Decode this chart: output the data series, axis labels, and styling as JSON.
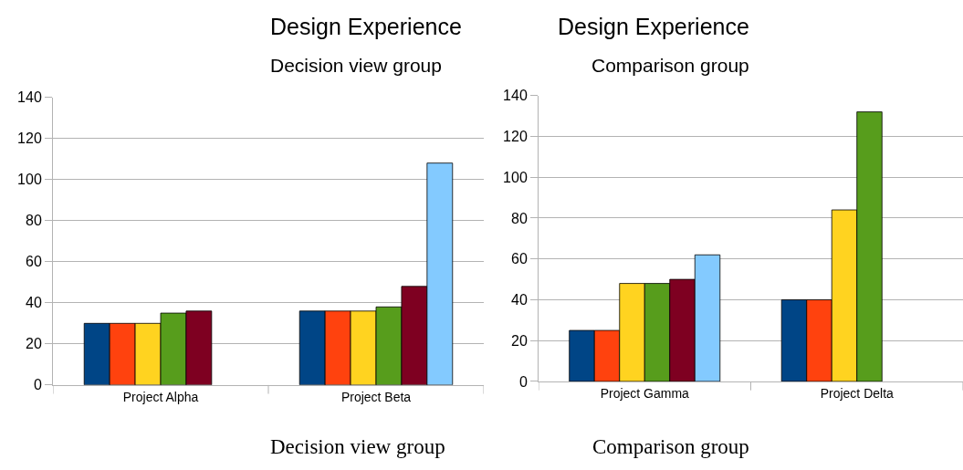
{
  "chart_data": [
    {
      "type": "bar",
      "title": "Design Experience",
      "subtitle": "Decision view group",
      "categories": [
        "Project Alpha",
        "Project Beta"
      ],
      "series": [
        {
          "color": "#004586",
          "values": [
            30,
            36
          ]
        },
        {
          "color": "#ff420e",
          "values": [
            30,
            36
          ]
        },
        {
          "color": "#ffd320",
          "values": [
            30,
            36
          ]
        },
        {
          "color": "#579d1c",
          "values": [
            35,
            38
          ]
        },
        {
          "color": "#7e0021",
          "values": [
            36,
            48
          ]
        },
        {
          "color": "#83caff",
          "values": [
            null,
            108
          ]
        }
      ],
      "ylim": [
        0,
        140
      ],
      "yticks": [
        0,
        20,
        40,
        60,
        80,
        100,
        120,
        140
      ],
      "grid": "y",
      "annotations": [
        "Decision view group"
      ]
    },
    {
      "type": "bar",
      "title": "Design Experience",
      "subtitle": "Comparison group",
      "categories": [
        "Project Gamma",
        "Project Delta"
      ],
      "series": [
        {
          "color": "#004586",
          "values": [
            25,
            40
          ]
        },
        {
          "color": "#ff420e",
          "values": [
            25,
            40
          ]
        },
        {
          "color": "#ffd320",
          "values": [
            48,
            84
          ]
        },
        {
          "color": "#579d1c",
          "values": [
            48,
            132
          ]
        },
        {
          "color": "#7e0021",
          "values": [
            50,
            null
          ]
        },
        {
          "color": "#83caff",
          "values": [
            62,
            null
          ]
        }
      ],
      "ylim": [
        0,
        140
      ],
      "yticks": [
        0,
        20,
        40,
        60,
        80,
        100,
        120,
        140
      ],
      "grid": "y",
      "annotations": [
        "Comparison group"
      ]
    }
  ]
}
